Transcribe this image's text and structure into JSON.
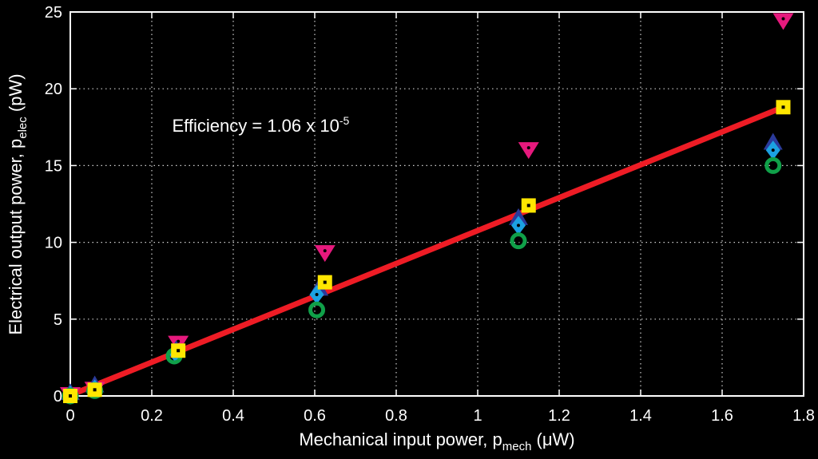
{
  "chart_data": {
    "type": "scatter",
    "xlabel": {
      "main": "Mechanical input power, p",
      "sub": "mech",
      "unit": " (μW)"
    },
    "ylabel": {
      "main": "Electrical output power, p",
      "sub": "elec",
      "unit": " (pW)"
    },
    "xlim": [
      0,
      1.8
    ],
    "ylim": [
      0,
      25
    ],
    "xticks": [
      0,
      0.2,
      0.4,
      0.6,
      0.8,
      1,
      1.2,
      1.4,
      1.6,
      1.8
    ],
    "xtick_labels": [
      "0",
      "0.2",
      "0.4",
      "0.6",
      "0.8",
      "1",
      "1.2",
      "1.4",
      "1.6",
      "1.8"
    ],
    "yticks": [
      0,
      5,
      10,
      15,
      20,
      25
    ],
    "ytick_labels": [
      "0",
      "5",
      "10",
      "15",
      "20",
      "25"
    ],
    "grid": true,
    "background": "#000000",
    "annotation": {
      "text": "Efficiency = 1.06 x 10",
      "sup": "-5",
      "x": 0.25,
      "y": 17.2
    },
    "fit_line": {
      "color": "#ee1c25",
      "points": [
        [
          0,
          0.05
        ],
        [
          1.75,
          18.8
        ]
      ]
    },
    "series": [
      {
        "marker": "triangle-down",
        "color": "#e6197d",
        "points": [
          [
            0,
            0.05
          ],
          [
            0.06,
            0.4
          ],
          [
            0.265,
            3.4
          ],
          [
            0.625,
            9.3
          ],
          [
            1.125,
            16.0
          ],
          [
            1.75,
            24.4
          ]
        ]
      },
      {
        "marker": "triangle-up",
        "color": "#2b3a9a",
        "points": [
          [
            0,
            0.2
          ],
          [
            0.06,
            0.7
          ],
          [
            0.26,
            3.0
          ],
          [
            0.61,
            7.0
          ],
          [
            1.1,
            11.6
          ],
          [
            1.725,
            16.5
          ]
        ]
      },
      {
        "marker": "diamond",
        "color": "#1ba1e2",
        "points": [
          [
            0,
            0.05
          ],
          [
            0.06,
            0.45
          ],
          [
            0.258,
            2.8
          ],
          [
            0.605,
            6.6
          ],
          [
            1.1,
            11.1
          ],
          [
            1.725,
            16.0
          ]
        ]
      },
      {
        "marker": "circle",
        "color": "#10a049",
        "points": [
          [
            0,
            0
          ],
          [
            0.06,
            0.35
          ],
          [
            0.255,
            2.6
          ],
          [
            0.605,
            5.6
          ],
          [
            1.1,
            10.1
          ],
          [
            1.725,
            15.0
          ]
        ]
      },
      {
        "marker": "square",
        "color": "#ffe600",
        "points": [
          [
            0,
            0
          ],
          [
            0.06,
            0.4
          ],
          [
            0.265,
            2.95
          ],
          [
            0.625,
            7.4
          ],
          [
            1.125,
            12.4
          ],
          [
            1.75,
            18.8
          ]
        ]
      }
    ]
  }
}
